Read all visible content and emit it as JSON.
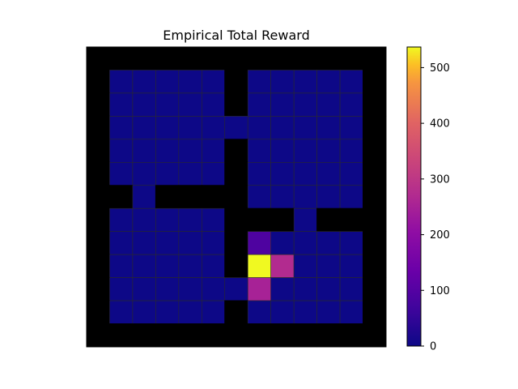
{
  "chart_data": {
    "type": "heatmap",
    "title": "Empirical Total Reward",
    "colormap": "plasma",
    "wall_color": "#000000",
    "grid_line_color": "#2a2a2a",
    "color_range": [
      0,
      537
    ],
    "colorbar": {
      "ticks": [
        0,
        100,
        200,
        300,
        400,
        500
      ],
      "tick_labels": [
        "0",
        "100",
        "200",
        "300",
        "400",
        "500"
      ]
    },
    "grid": {
      "rows": 13,
      "cols": 13,
      "values": [
        [
          null,
          null,
          null,
          null,
          null,
          null,
          null,
          null,
          null,
          null,
          null,
          null,
          null
        ],
        [
          null,
          0,
          0,
          0,
          0,
          0,
          null,
          0,
          0,
          0,
          0,
          0,
          null
        ],
        [
          null,
          0,
          0,
          0,
          0,
          0,
          null,
          0,
          0,
          0,
          0,
          0,
          null
        ],
        [
          null,
          0,
          0,
          0,
          0,
          0,
          0,
          0,
          0,
          0,
          0,
          0,
          null
        ],
        [
          null,
          0,
          0,
          0,
          0,
          0,
          null,
          0,
          0,
          0,
          0,
          0,
          null
        ],
        [
          null,
          0,
          0,
          0,
          0,
          0,
          null,
          0,
          0,
          0,
          0,
          0,
          null
        ],
        [
          null,
          null,
          0,
          null,
          null,
          null,
          null,
          0,
          0,
          0,
          0,
          0,
          null
        ],
        [
          null,
          0,
          0,
          0,
          0,
          0,
          null,
          null,
          null,
          0,
          null,
          null,
          null
        ],
        [
          null,
          0,
          0,
          0,
          0,
          0,
          null,
          90,
          0,
          0,
          0,
          0,
          null
        ],
        [
          null,
          0,
          0,
          0,
          0,
          0,
          null,
          537,
          270,
          0,
          0,
          0,
          null
        ],
        [
          null,
          0,
          0,
          0,
          0,
          0,
          0,
          250,
          0,
          0,
          0,
          0,
          null
        ],
        [
          null,
          0,
          0,
          0,
          0,
          0,
          null,
          0,
          0,
          0,
          0,
          0,
          null
        ],
        [
          null,
          null,
          null,
          null,
          null,
          null,
          null,
          null,
          null,
          null,
          null,
          null,
          null
        ]
      ]
    }
  }
}
